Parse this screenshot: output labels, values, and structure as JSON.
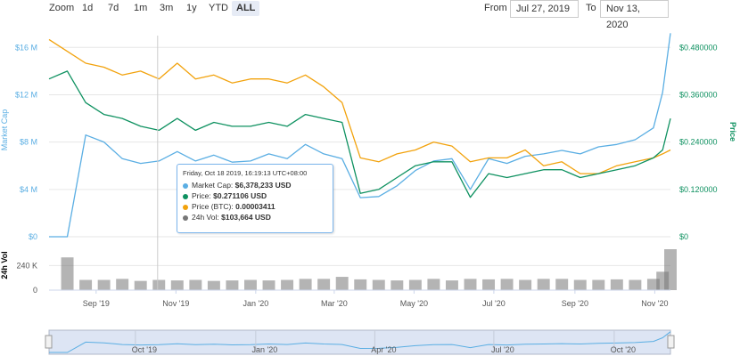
{
  "toolbar": {
    "zoom_label": "Zoom",
    "zoom_buttons": [
      "1d",
      "7d",
      "1m",
      "3m",
      "1y",
      "YTD",
      "ALL"
    ],
    "active_zoom": "ALL",
    "from_label": "From",
    "from_value": "Jul 27, 2019",
    "to_label": "To",
    "to_value": "Nov 13, 2020"
  },
  "colors": {
    "market_cap": "#5aaee3",
    "price": "#0e9160",
    "price_btc": "#f2a20c",
    "volume": "#777777",
    "navigator_fill": "#dde5f4"
  },
  "tooltip": {
    "title": "Friday, Oct 18 2019, 16:19:13 UTC+08:00",
    "rows": [
      {
        "label": "Market Cap:",
        "value": "$6,378,233 USD",
        "color": "#5aaee3"
      },
      {
        "label": "Price:",
        "value": "$0.271106 USD",
        "color": "#0e9160"
      },
      {
        "label": "Price (BTC):",
        "value": "0.00003411",
        "color": "#f2a20c"
      },
      {
        "label": "24h Vol:",
        "value": "$103,664 USD",
        "color": "#777777"
      }
    ]
  },
  "chart_data": {
    "type": "line",
    "left_axis_title": "Market Cap",
    "right_axis_title": "Price",
    "volume_axis_title": "24h Vol",
    "x_ticks": [
      "Sep '19",
      "Nov '19",
      "Jan '20",
      "Mar '20",
      "May '20",
      "Jul '20",
      "Sep '20",
      "Nov '20"
    ],
    "navigator_ticks": [
      "Oct '19",
      "Jan '20",
      "Apr '20",
      "Jul '20",
      "Oct '20"
    ],
    "left_ticks": [
      "$0",
      "$4 M",
      "$8 M",
      "$12 M",
      "$16 M"
    ],
    "right_ticks": [
      "$0",
      "$0.120000",
      "$0.240000",
      "$0.360000",
      "$0.480000"
    ],
    "volume_ticks": [
      "0",
      "240 K"
    ],
    "x": [
      "2019-07-27",
      "2019-08-10",
      "2019-08-24",
      "2019-09-07",
      "2019-09-21",
      "2019-10-05",
      "2019-10-19",
      "2019-11-02",
      "2019-11-16",
      "2019-11-30",
      "2019-12-14",
      "2019-12-28",
      "2020-01-11",
      "2020-01-25",
      "2020-02-08",
      "2020-02-22",
      "2020-03-07",
      "2020-03-21",
      "2020-04-04",
      "2020-04-18",
      "2020-05-02",
      "2020-05-16",
      "2020-05-30",
      "2020-06-13",
      "2020-06-27",
      "2020-07-11",
      "2020-07-25",
      "2020-08-08",
      "2020-08-22",
      "2020-09-05",
      "2020-09-19",
      "2020-10-03",
      "2020-10-17",
      "2020-10-31",
      "2020-11-07",
      "2020-11-13"
    ],
    "series": [
      {
        "name": "Market Cap",
        "axis": "left_usd",
        "values": [
          0,
          0,
          8.6,
          8.0,
          6.6,
          6.2,
          6.4,
          7.2,
          6.4,
          6.9,
          6.3,
          6.4,
          7.0,
          6.6,
          7.8,
          7.0,
          6.6,
          3.3,
          3.4,
          4.3,
          5.6,
          6.4,
          6.6,
          4.0,
          6.6,
          6.2,
          6.8,
          7.0,
          7.3,
          7.0,
          7.6,
          7.8,
          8.2,
          9.2,
          12.2,
          17.2
        ]
      },
      {
        "name": "Price",
        "axis": "right_usd",
        "values": [
          0.4,
          0.42,
          0.34,
          0.31,
          0.3,
          0.28,
          0.27,
          0.3,
          0.27,
          0.29,
          0.28,
          0.28,
          0.29,
          0.28,
          0.31,
          0.3,
          0.29,
          0.11,
          0.12,
          0.15,
          0.18,
          0.19,
          0.19,
          0.1,
          0.16,
          0.15,
          0.16,
          0.17,
          0.17,
          0.15,
          0.16,
          0.17,
          0.18,
          0.2,
          0.22,
          0.3
        ]
      },
      {
        "name": "Price (BTC)",
        "axis": "right_usd",
        "values": [
          0.5,
          0.47,
          0.44,
          0.43,
          0.41,
          0.42,
          0.4,
          0.44,
          0.4,
          0.41,
          0.39,
          0.4,
          0.4,
          0.39,
          0.41,
          0.38,
          0.34,
          0.2,
          0.19,
          0.21,
          0.22,
          0.24,
          0.23,
          0.19,
          0.2,
          0.2,
          0.22,
          0.18,
          0.19,
          0.16,
          0.16,
          0.18,
          0.19,
          0.2,
          0.21,
          0.22
        ]
      },
      {
        "name": "24h Vol",
        "axis": "volume",
        "values": [
          0,
          320,
          100,
          100,
          110,
          90,
          100,
          95,
          100,
          90,
          95,
          100,
          95,
          100,
          110,
          110,
          130,
          105,
          100,
          95,
          100,
          110,
          95,
          110,
          105,
          110,
          100,
          110,
          110,
          100,
          100,
          105,
          100,
          110,
          180,
          400
        ]
      }
    ],
    "left_ylim": [
      0,
      17
    ],
    "right_ylim": [
      0,
      0.51
    ],
    "volume_ylim": [
      0,
      400
    ]
  }
}
